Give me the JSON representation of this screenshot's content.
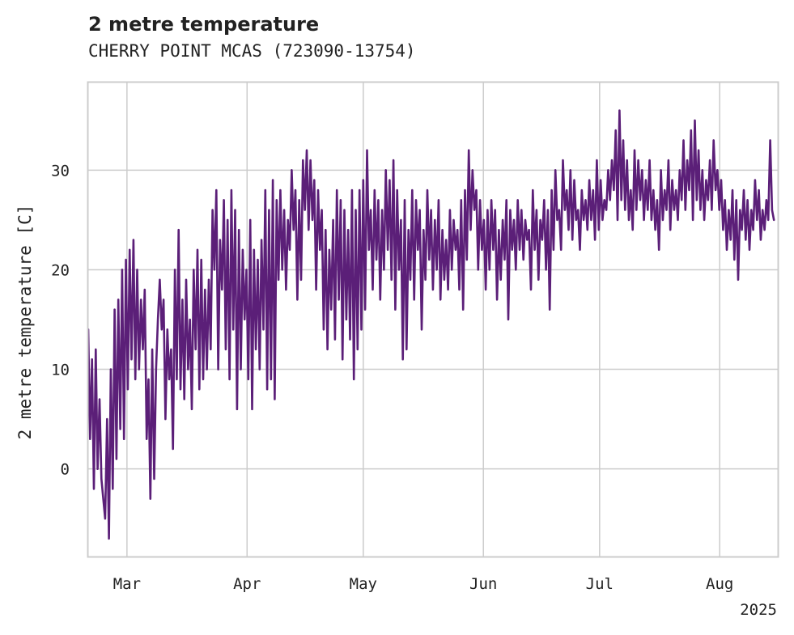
{
  "chart_data": {
    "type": "line",
    "title": "2 metre temperature",
    "subtitle": "CHERRY POINT MCAS (723090-13754)",
    "ylabel": "2 metre temperature [C]",
    "xlabel": "",
    "x_start": "2025-02-19",
    "x_end": "2025-08-15",
    "xlim": [
      "2025-02-19",
      "2025-08-16"
    ],
    "ylim": [
      -8.8,
      38.8
    ],
    "x_ticks": [
      {
        "date": "2025-03-01",
        "label": "Mar"
      },
      {
        "date": "2025-04-01",
        "label": "Apr"
      },
      {
        "date": "2025-05-01",
        "label": "May"
      },
      {
        "date": "2025-06-01",
        "label": "Jun"
      },
      {
        "date": "2025-07-01",
        "label": "Jul"
      },
      {
        "date": "2025-08-01",
        "label": "Aug"
      }
    ],
    "x_year_label": "2025",
    "y_ticks": [
      0,
      10,
      20,
      30
    ],
    "grid": true,
    "line_color": "#5b1f78",
    "series": [
      {
        "values": [
          14,
          3,
          11,
          -2,
          12,
          0,
          7,
          -1,
          -3,
          -5,
          5,
          -7,
          10,
          -2,
          16,
          1,
          17,
          4,
          20,
          3,
          21,
          8,
          22,
          11,
          23,
          9,
          20,
          10,
          17,
          12,
          18,
          3,
          9,
          -3,
          12,
          -1,
          10,
          15,
          19,
          14,
          17,
          5,
          14,
          9,
          12,
          2,
          20,
          9,
          24,
          8,
          17,
          7,
          19,
          10,
          15,
          6,
          20,
          12,
          22,
          8,
          21,
          9,
          18,
          10,
          19,
          12,
          26,
          20,
          28,
          10,
          23,
          18,
          27,
          12,
          25,
          9,
          28,
          14,
          26,
          6,
          24,
          10,
          22,
          15,
          20,
          9,
          25,
          6,
          22,
          12,
          21,
          10,
          23,
          14,
          28,
          8,
          26,
          9,
          29,
          7,
          27,
          19,
          28,
          20,
          26,
          18,
          25,
          22,
          30,
          24,
          28,
          17,
          27,
          19,
          31,
          26,
          32,
          24,
          31,
          25,
          29,
          18,
          28,
          22,
          26,
          14,
          24,
          12,
          22,
          16,
          25,
          13,
          28,
          17,
          27,
          11,
          26,
          15,
          24,
          13,
          28,
          9,
          26,
          12,
          28,
          14,
          29,
          16,
          32,
          22,
          26,
          18,
          28,
          21,
          27,
          17,
          26,
          20,
          30,
          22,
          29,
          19,
          31,
          16,
          28,
          20,
          25,
          11,
          27,
          12,
          24,
          19,
          28,
          17,
          27,
          22,
          26,
          14,
          24,
          19,
          28,
          21,
          26,
          18,
          25,
          20,
          27,
          17,
          24,
          19,
          23,
          18,
          26,
          20,
          25,
          22,
          24,
          18,
          27,
          16,
          28,
          21,
          32,
          24,
          30,
          26,
          28,
          20,
          27,
          22,
          25,
          18,
          26,
          20,
          27,
          22,
          26,
          17,
          24,
          19,
          25,
          21,
          27,
          15,
          26,
          22,
          25,
          20,
          27,
          22,
          26,
          21,
          25,
          23,
          24,
          18,
          28,
          22,
          26,
          19,
          25,
          23,
          27,
          20,
          26,
          16,
          28,
          22,
          30,
          25,
          26,
          22,
          31,
          26,
          28,
          24,
          30,
          23,
          29,
          25,
          26,
          22,
          28,
          25,
          27,
          24,
          29,
          25,
          28,
          23,
          31,
          24,
          29,
          25,
          27,
          26,
          30,
          27,
          31,
          28,
          34,
          25,
          36,
          27,
          33,
          26,
          31,
          25,
          28,
          24,
          32,
          26,
          31,
          27,
          30,
          25,
          29,
          26,
          31,
          25,
          28,
          24,
          27,
          22,
          30,
          25,
          28,
          26,
          31,
          24,
          29,
          26,
          28,
          25,
          30,
          27,
          33,
          26,
          31,
          28,
          34,
          25,
          35,
          27,
          32,
          26,
          30,
          25,
          29,
          27,
          31,
          26,
          33,
          28,
          30,
          26,
          29,
          24,
          27,
          22,
          26,
          23,
          28,
          21,
          27,
          19,
          26,
          24,
          28,
          23,
          27,
          22,
          26,
          24,
          29,
          25,
          28,
          23,
          26,
          24,
          27,
          25,
          33,
          26,
          25
        ]
      }
    ]
  }
}
